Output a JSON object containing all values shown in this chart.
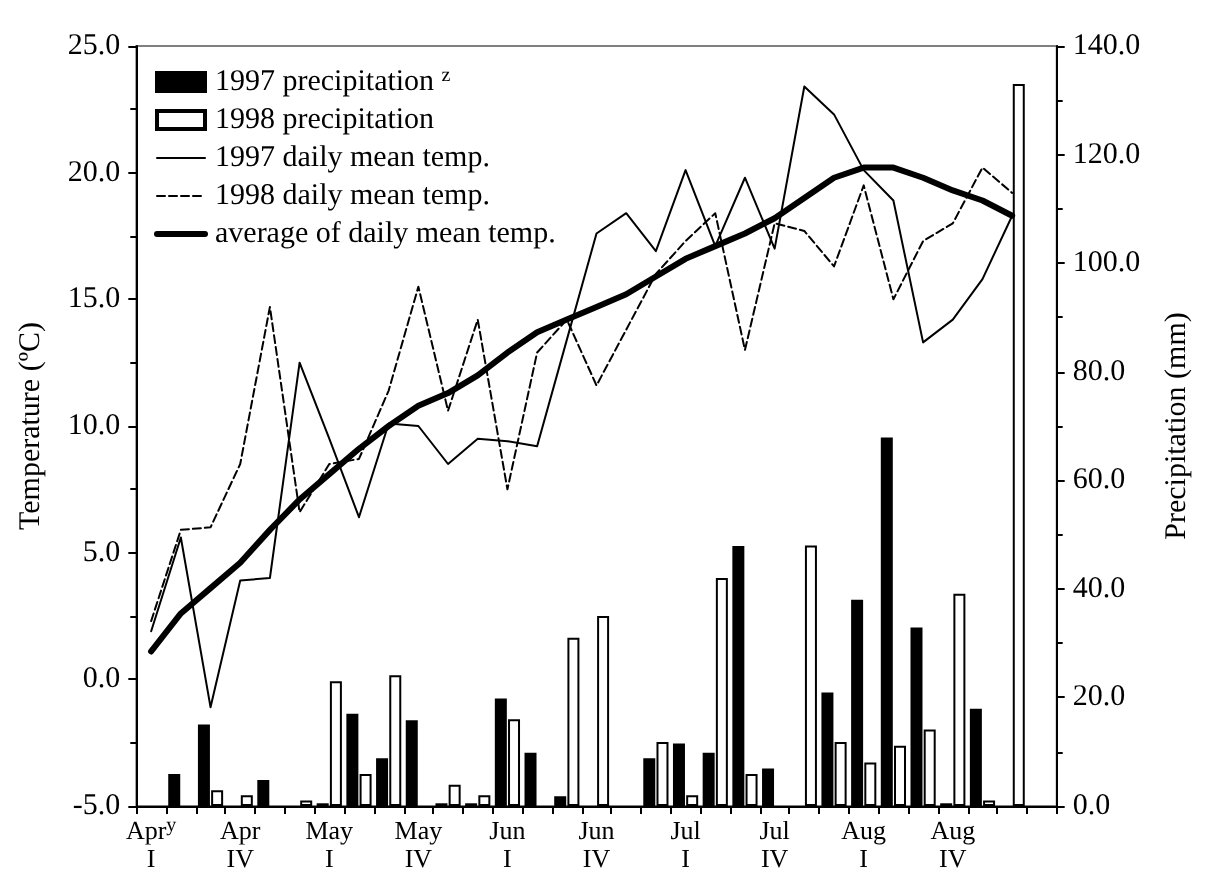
{
  "chart_data": {
    "type": "bar",
    "ylabel": "Temperature (ºC)",
    "y2label": "Precipitation (mm)",
    "categories": [
      "Apr$^{y}$\nI",
      null,
      null,
      "Apr\nIV",
      null,
      null,
      "May\nI",
      null,
      null,
      "May\nIV",
      null,
      null,
      "Jun\nI",
      null,
      null,
      "Jun\nIV",
      null,
      null,
      "Jul\nI",
      null,
      null,
      "Jul\nIV",
      null,
      null,
      "Aug\nI",
      null,
      null,
      "Aug\nIV",
      null,
      null,
      null
    ],
    "series": [
      {
        "name": "1997 precipitation $^{z}$",
        "axis": "y2",
        "color": "#000000",
        "values": [
          null,
          5.9,
          15.0,
          null,
          4.8,
          null,
          0.5,
          17.0,
          8.8,
          15.8,
          0.5,
          0.5,
          19.8,
          9.8,
          1.8,
          null,
          null,
          8.8,
          11.5,
          9.8,
          47.9,
          6.9,
          null,
          20.9,
          38.0,
          67.9,
          32.9,
          0.5,
          17.9,
          null,
          null
        ]
      },
      {
        "name": "1998 precipitation",
        "axis": "y2",
        "color": "#ffffff",
        "values": [
          null,
          null,
          2.9,
          2.0,
          null,
          1.0,
          23.0,
          5.9,
          24.1,
          null,
          3.9,
          2.0,
          16.0,
          null,
          31.0,
          35.0,
          null,
          11.8,
          2.0,
          42.0,
          5.9,
          null,
          48.0,
          11.8,
          8.0,
          11.1,
          14.1,
          39.1,
          1.0,
          133.0,
          null
        ]
      },
      {
        "name": "1997 daily mean temp.",
        "type": "line",
        "line_style": "solid",
        "color": "#000000",
        "values": [
          1.9,
          5.6,
          -1.1,
          3.9,
          4.0,
          12.5,
          9.5,
          6.4,
          10.1,
          10.0,
          8.5,
          9.5,
          9.4,
          9.2,
          13.4,
          17.6,
          18.4,
          16.9,
          20.1,
          17.1,
          19.8,
          17.0,
          23.4,
          22.3,
          20.1,
          18.9,
          13.3,
          14.2,
          15.8,
          18.3,
          null
        ]
      },
      {
        "name": "1998 daily mean temp.",
        "type": "line",
        "line_style": "dashed",
        "color": "#000000",
        "values": [
          2.3,
          5.9,
          6.0,
          8.5,
          14.7,
          6.6,
          8.5,
          8.7,
          11.4,
          15.5,
          10.6,
          14.2,
          7.5,
          12.9,
          14.2,
          11.6,
          13.8,
          16.0,
          17.3,
          18.4,
          13.0,
          18.0,
          17.7,
          16.3,
          19.5,
          15.0,
          17.3,
          18.0,
          20.2,
          19.2,
          null
        ]
      },
      {
        "name": "average of daily mean temp.",
        "type": "line",
        "line_style": "solid",
        "color": "#000000",
        "values": [
          1.1,
          2.6,
          3.6,
          4.6,
          5.9,
          7.1,
          8.1,
          9.1,
          10.0,
          10.8,
          11.3,
          12.0,
          12.9,
          13.7,
          14.2,
          14.7,
          15.2,
          15.9,
          16.6,
          17.1,
          17.6,
          18.2,
          19.0,
          19.8,
          20.2,
          20.2,
          19.8,
          19.3,
          18.9,
          18.3,
          null
        ]
      }
    ],
    "ylim": [
      -5,
      25
    ],
    "yticks": [
      {
        "value": -5,
        "label": "-5.0"
      },
      {
        "value": 0,
        "label": "0.0"
      },
      {
        "value": 5,
        "label": "5.0"
      },
      {
        "value": 10,
        "label": "10.0"
      },
      {
        "value": 15,
        "label": "15.0"
      },
      {
        "value": 20,
        "label": "20.0"
      },
      {
        "value": 25,
        "label": "25.0"
      }
    ],
    "y2lim": [
      0,
      140
    ],
    "y2ticks": [
      {
        "value": 0,
        "label": "0.0"
      },
      {
        "value": 20,
        "label": "20.0"
      },
      {
        "value": 40,
        "label": "40.0"
      },
      {
        "value": 60,
        "label": "60.0"
      },
      {
        "value": 80,
        "label": "80.0"
      },
      {
        "value": 100,
        "label": "100.0"
      },
      {
        "value": 120,
        "label": "120.0"
      },
      {
        "value": 140,
        "label": "140.0"
      }
    ],
    "grid": false,
    "legend": "top left",
    "marker": "none"
  }
}
